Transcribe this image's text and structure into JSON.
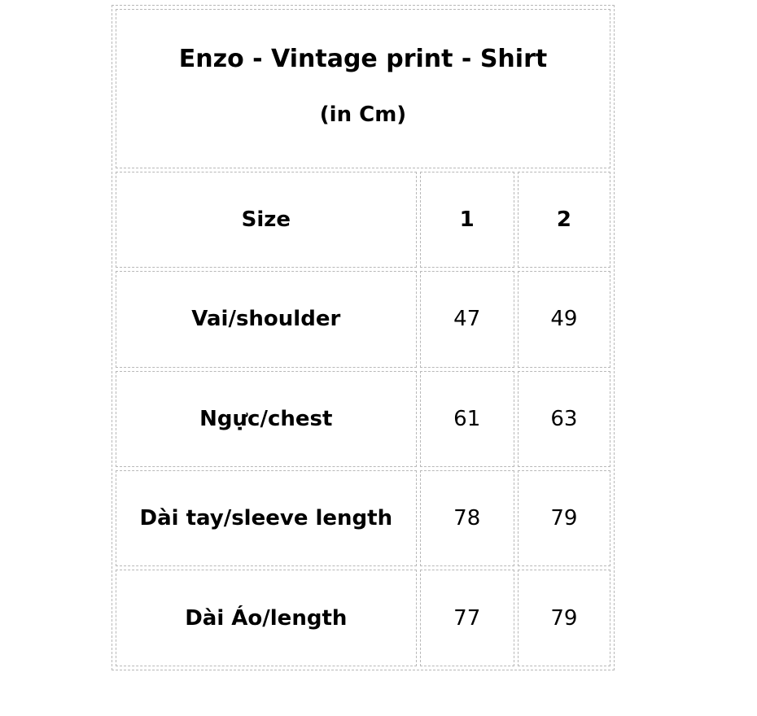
{
  "title": "Enzo - Vintage print - Shirt",
  "unit": "(in Cm)",
  "header": {
    "label": "Size",
    "sizes": [
      "1",
      "2"
    ]
  },
  "rows": [
    {
      "label": "Vai/shoulder",
      "values": [
        "47",
        "49"
      ]
    },
    {
      "label": "Ngực/chest",
      "values": [
        "61",
        "63"
      ]
    },
    {
      "label": "Dài tay/sleeve length",
      "values": [
        "78",
        "79"
      ]
    },
    {
      "label": "Dài Áo/length",
      "values": [
        "77",
        "79"
      ]
    }
  ],
  "colors": {
    "border": "#b8b8b8",
    "text": "#000000"
  }
}
